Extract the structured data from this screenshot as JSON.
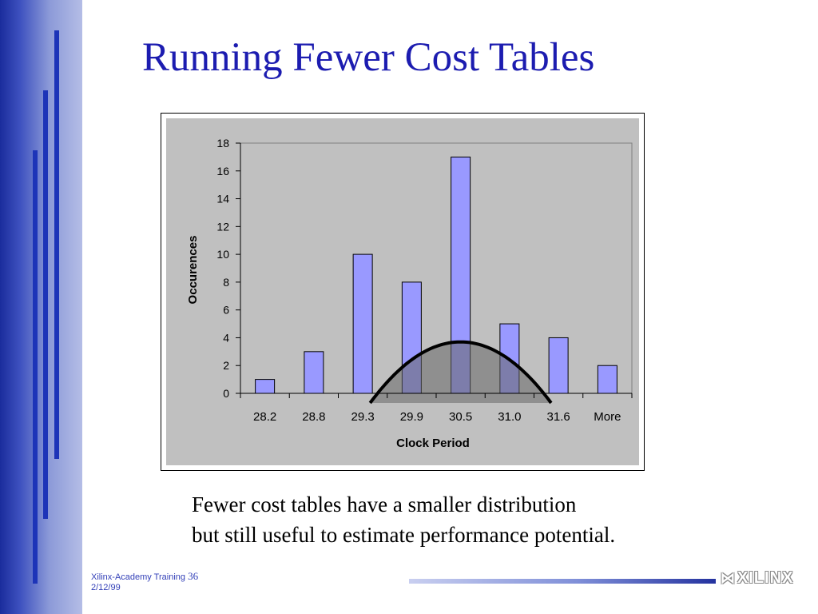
{
  "slide": {
    "title": "Running Fewer Cost Tables",
    "caption_line1": "Fewer cost tables have a smaller distribution",
    "caption_line2": "but still useful to estimate performance potential.",
    "footer_text": "Xilinx-Academy Training",
    "page_number": "36",
    "date": "2/12/99",
    "logo_text": "XILINX",
    "accent_color": "#1c1cb0"
  },
  "chart_data": {
    "type": "bar",
    "categories": [
      "28.2",
      "28.8",
      "29.3",
      "29.9",
      "30.5",
      "31.0",
      "31.6",
      "More"
    ],
    "values": [
      1,
      3,
      10,
      8,
      17,
      5,
      4,
      2
    ],
    "xlabel": "Clock Period",
    "ylabel": "Occurences",
    "ylim": [
      0,
      18
    ],
    "yticks": [
      0,
      2,
      4,
      6,
      8,
      10,
      12,
      14,
      16,
      18
    ],
    "grid": false,
    "legend": "none",
    "bar_color": "#9999ff",
    "plot_background": "#c0c0c0",
    "overlay": {
      "type": "bell-curve",
      "peak_category": "30.5",
      "peak_value": 3.7,
      "fill": "#666666"
    }
  }
}
